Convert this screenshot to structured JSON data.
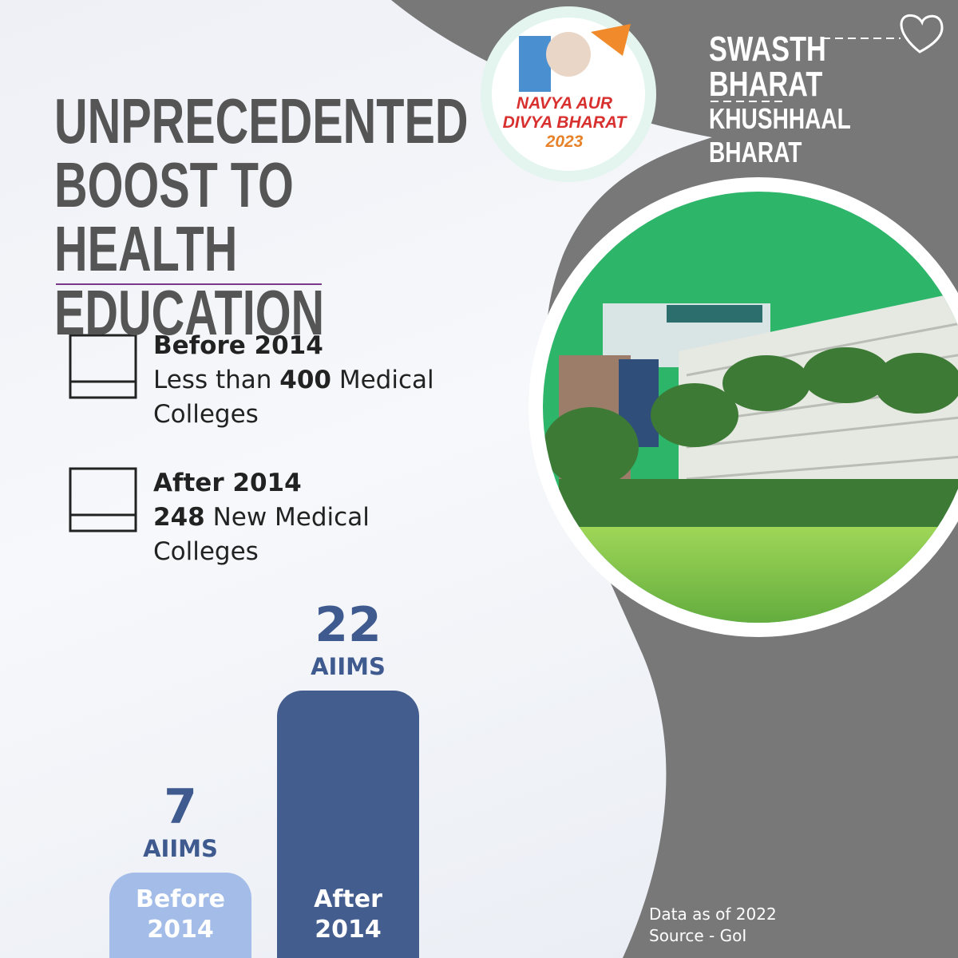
{
  "title": "UNPRECEDENTED BOOST TO HEALTH EDUCATION",
  "logo": {
    "line1": "NAVYA AUR",
    "line2": "DIVYA BHARAT",
    "year": "2023"
  },
  "brand": {
    "line1": "SWASTH BHARAT",
    "line2": "KHUSHHAAL BHARAT"
  },
  "items": [
    {
      "heading": "Before 2014",
      "pre": "Less than",
      "number": 400,
      "post": "Medical Colleges"
    },
    {
      "heading": "After 2014",
      "number": 248,
      "post": "New Medical Colleges"
    }
  ],
  "chart_data": {
    "type": "bar",
    "unit": "AIIMS",
    "categories": [
      "Before 2014",
      "After 2014"
    ],
    "values": [
      7,
      22
    ],
    "colors": [
      "#a3bde8",
      "#445d8f"
    ]
  },
  "footer": {
    "note": "Data as of 2022",
    "source": "Source - GoI"
  }
}
